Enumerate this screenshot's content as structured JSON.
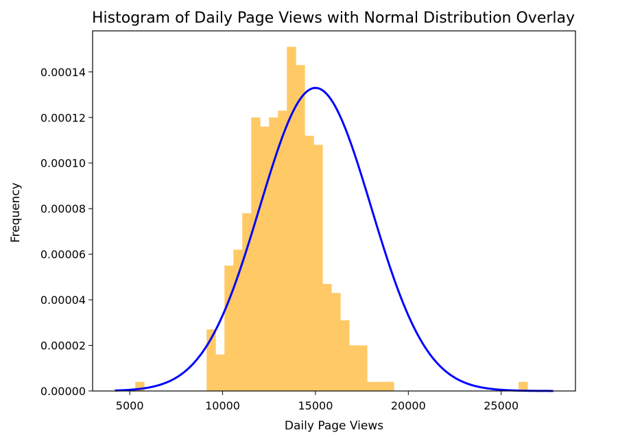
{
  "chart_data": {
    "type": "bar",
    "title": "Histogram of Daily Page Views with Normal Distribution Overlay",
    "xlabel": "Daily Page Views",
    "ylabel": "Frequency",
    "xlim": [
      3000,
      29000
    ],
    "ylim": [
      0,
      0.000158
    ],
    "xticks": [
      5000,
      10000,
      15000,
      20000,
      25000
    ],
    "xtick_labels": [
      "5000",
      "10000",
      "15000",
      "20000",
      "25000"
    ],
    "yticks": [
      0,
      2e-05,
      4e-05,
      6e-05,
      8e-05,
      0.0001,
      0.00012,
      0.00014
    ],
    "ytick_labels": [
      "0.00000",
      "0.00002",
      "0.00004",
      "0.00006",
      "0.00008",
      "0.00010",
      "0.00012",
      "0.00014"
    ],
    "grid": false,
    "histogram": {
      "color": "#ffc966",
      "bin_edges": [
        5300,
        5780,
        6260,
        6740,
        7220,
        7700,
        8180,
        8660,
        9140,
        9620,
        10100,
        10580,
        11060,
        11540,
        12020,
        12500,
        12980,
        13460,
        13940,
        14420,
        14900,
        15380,
        15860,
        16340,
        16820,
        17300,
        17780,
        18260,
        18740,
        19220,
        19700,
        20180,
        20660,
        21140,
        21620,
        22100,
        22580,
        23060,
        23540,
        24020,
        24500,
        24980,
        25460,
        25940,
        26420
      ],
      "densities": [
        4e-06,
        0,
        0,
        0,
        0,
        0,
        0,
        0,
        2.7e-05,
        1.6e-05,
        5.5e-05,
        6.2e-05,
        7.8e-05,
        0.00012,
        0.000116,
        0.00012,
        0.000123,
        0.000151,
        0.000143,
        0.000112,
        0.000108,
        4.7e-05,
        4.3e-05,
        3.1e-05,
        2e-05,
        2e-05,
        4e-06,
        4e-06,
        4e-06,
        0,
        0,
        0,
        0,
        0,
        0,
        0,
        0,
        0,
        0,
        0,
        0,
        0,
        0,
        4e-06
      ]
    },
    "series": [
      {
        "type": "line",
        "color": "#0000ff",
        "mean": 15000,
        "std": 3000,
        "x_range": [
          4200,
          27800
        ]
      }
    ]
  }
}
